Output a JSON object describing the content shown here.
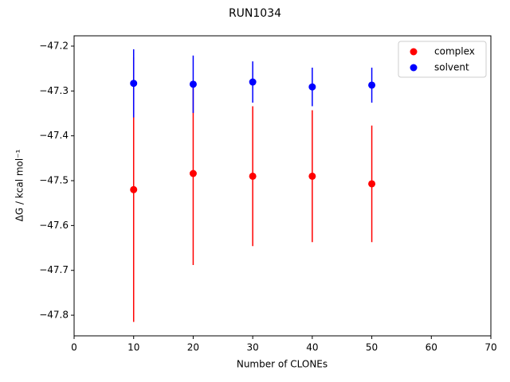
{
  "chart_data": {
    "type": "scatter",
    "title": "RUN1034",
    "xlabel": "Number of CLONEs",
    "ylabel": "ΔG / kcal mol⁻¹",
    "x": [
      10,
      20,
      30,
      40,
      50
    ],
    "series": [
      {
        "name": "complex",
        "color": "#ff0000",
        "values": [
          -47.52,
          -47.484,
          -47.49,
          -47.49,
          -47.507
        ],
        "errors": [
          0.295,
          0.204,
          0.156,
          0.147,
          0.13
        ]
      },
      {
        "name": "solvent",
        "color": "#0000ff",
        "values": [
          -47.283,
          -47.285,
          -47.28,
          -47.291,
          -47.287
        ],
        "errors": [
          0.076,
          0.064,
          0.046,
          0.043,
          0.039
        ]
      }
    ],
    "xlim": [
      0,
      70
    ],
    "xticks": [
      0,
      10,
      20,
      30,
      40,
      50,
      60,
      70
    ],
    "ylim": [
      -47.846,
      -47.177
    ],
    "yticks": [
      {
        "value": -47.8,
        "label": "−47.8"
      },
      {
        "value": -47.7,
        "label": "−47.7"
      },
      {
        "value": -47.6,
        "label": "−47.6"
      },
      {
        "value": -47.5,
        "label": "−47.5"
      },
      {
        "value": -47.4,
        "label": "−47.4"
      },
      {
        "value": -47.3,
        "label": "−47.3"
      },
      {
        "value": -47.2,
        "label": "−47.2"
      }
    ],
    "grid": false,
    "legend": "upper right"
  }
}
